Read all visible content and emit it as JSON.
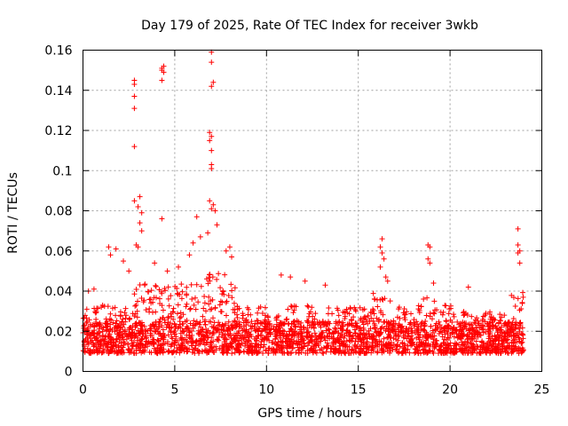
{
  "chart_data": {
    "type": "scatter",
    "title": "Day 179 of 2025, Rate Of TEC Index for receiver 3wkb",
    "xlabel": "GPS time / hours",
    "ylabel": "ROTI / TECUs",
    "xlim": [
      0,
      25
    ],
    "ylim": [
      0,
      0.16
    ],
    "xticks": [
      0,
      5,
      10,
      15,
      20,
      25
    ],
    "yticks": [
      0,
      0.02,
      0.04,
      0.06,
      0.08,
      0.1,
      0.12,
      0.14,
      0.16
    ],
    "xtick_labels": [
      "0",
      "5",
      "10",
      "15",
      "20",
      "25"
    ],
    "ytick_labels": [
      "0",
      "0.02",
      "0.04",
      "0.06",
      "0.08",
      "0.1",
      "0.12",
      "0.14",
      "0.16"
    ],
    "grid": true,
    "marker": "+",
    "color": "#ff0000",
    "series": [
      {
        "name": "ROTI",
        "x_range": [
          0,
          24
        ],
        "typical_range": [
          0.005,
          0.035
        ],
        "outliers": [
          {
            "x": 2.8,
            "y": 0.145
          },
          {
            "x": 2.8,
            "y": 0.143
          },
          {
            "x": 2.8,
            "y": 0.137
          },
          {
            "x": 2.8,
            "y": 0.131
          },
          {
            "x": 2.8,
            "y": 0.112
          },
          {
            "x": 2.8,
            "y": 0.085
          },
          {
            "x": 3.1,
            "y": 0.087
          },
          {
            "x": 3.0,
            "y": 0.082
          },
          {
            "x": 3.2,
            "y": 0.079
          },
          {
            "x": 4.3,
            "y": 0.151
          },
          {
            "x": 4.3,
            "y": 0.15
          },
          {
            "x": 4.4,
            "y": 0.152
          },
          {
            "x": 4.4,
            "y": 0.149
          },
          {
            "x": 4.3,
            "y": 0.145
          },
          {
            "x": 4.3,
            "y": 0.076
          },
          {
            "x": 7.0,
            "y": 0.159
          },
          {
            "x": 7.0,
            "y": 0.154
          },
          {
            "x": 7.1,
            "y": 0.144
          },
          {
            "x": 7.0,
            "y": 0.142
          },
          {
            "x": 6.9,
            "y": 0.119
          },
          {
            "x": 7.0,
            "y": 0.117
          },
          {
            "x": 6.9,
            "y": 0.115
          },
          {
            "x": 7.0,
            "y": 0.11
          },
          {
            "x": 7.0,
            "y": 0.103
          },
          {
            "x": 7.0,
            "y": 0.101
          },
          {
            "x": 6.9,
            "y": 0.085
          },
          {
            "x": 7.1,
            "y": 0.083
          },
          {
            "x": 7.0,
            "y": 0.081
          },
          {
            "x": 7.2,
            "y": 0.08
          },
          {
            "x": 6.2,
            "y": 0.077
          },
          {
            "x": 7.3,
            "y": 0.073
          },
          {
            "x": 6.8,
            "y": 0.069
          },
          {
            "x": 3.1,
            "y": 0.074
          },
          {
            "x": 3.2,
            "y": 0.07
          },
          {
            "x": 2.9,
            "y": 0.063
          },
          {
            "x": 3.0,
            "y": 0.062
          },
          {
            "x": 1.4,
            "y": 0.062
          },
          {
            "x": 1.8,
            "y": 0.061
          },
          {
            "x": 1.5,
            "y": 0.058
          },
          {
            "x": 16.3,
            "y": 0.066
          },
          {
            "x": 16.2,
            "y": 0.062
          },
          {
            "x": 16.3,
            "y": 0.059
          },
          {
            "x": 16.4,
            "y": 0.056
          },
          {
            "x": 16.2,
            "y": 0.052
          },
          {
            "x": 18.8,
            "y": 0.063
          },
          {
            "x": 18.9,
            "y": 0.062
          },
          {
            "x": 18.8,
            "y": 0.056
          },
          {
            "x": 18.9,
            "y": 0.054
          },
          {
            "x": 23.7,
            "y": 0.071
          },
          {
            "x": 23.7,
            "y": 0.063
          },
          {
            "x": 23.8,
            "y": 0.06
          },
          {
            "x": 23.7,
            "y": 0.059
          },
          {
            "x": 23.8,
            "y": 0.054
          },
          {
            "x": 8.0,
            "y": 0.062
          },
          {
            "x": 7.8,
            "y": 0.06
          },
          {
            "x": 8.1,
            "y": 0.057
          },
          {
            "x": 5.2,
            "y": 0.052
          },
          {
            "x": 5.8,
            "y": 0.058
          },
          {
            "x": 6.0,
            "y": 0.064
          },
          {
            "x": 6.4,
            "y": 0.067
          },
          {
            "x": 3.9,
            "y": 0.054
          },
          {
            "x": 4.6,
            "y": 0.05
          },
          {
            "x": 10.8,
            "y": 0.048
          },
          {
            "x": 11.3,
            "y": 0.047
          },
          {
            "x": 12.1,
            "y": 0.045
          },
          {
            "x": 13.2,
            "y": 0.043
          },
          {
            "x": 16.5,
            "y": 0.047
          },
          {
            "x": 16.6,
            "y": 0.045
          },
          {
            "x": 19.1,
            "y": 0.044
          },
          {
            "x": 21.0,
            "y": 0.042
          },
          {
            "x": 2.2,
            "y": 0.055
          },
          {
            "x": 2.5,
            "y": 0.05
          },
          {
            "x": 0.3,
            "y": 0.04
          },
          {
            "x": 0.6,
            "y": 0.041
          }
        ]
      }
    ]
  }
}
